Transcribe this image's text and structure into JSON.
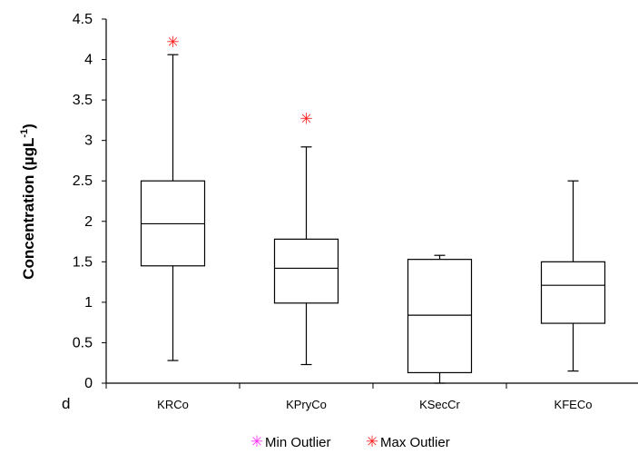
{
  "chart_data": {
    "type": "box",
    "categories": [
      "KRCo",
      "KPryCo",
      "KSecCr",
      "KFECo"
    ],
    "ylabel": "Concentration (µgL",
    "ylabel_sup": "-1",
    "ylabel_close": ")",
    "ylim": [
      0,
      4.5
    ],
    "yticks": [
      0,
      0.5,
      1,
      1.5,
      2,
      2.5,
      3,
      3.5,
      4,
      4.5
    ],
    "panel_label": "d",
    "boxes": [
      {
        "category": "KRCo",
        "min": 0.28,
        "q1": 1.45,
        "median": 1.97,
        "q3": 2.5,
        "max": 4.06,
        "max_outlier": 4.22
      },
      {
        "category": "KPryCo",
        "min": 0.23,
        "q1": 0.99,
        "median": 1.42,
        "q3": 1.78,
        "max": 2.92,
        "max_outlier": 3.27
      },
      {
        "category": "KSecCr",
        "min": 0.0,
        "q1": 0.13,
        "median": 0.84,
        "q3": 1.53,
        "max": 1.58
      },
      {
        "category": "KFECo",
        "min": 0.15,
        "q1": 0.74,
        "median": 1.21,
        "q3": 1.5,
        "max": 2.5
      }
    ],
    "legend": [
      {
        "label": "Min Outlier",
        "color": "#ff33ff"
      },
      {
        "label": "Max Outlier",
        "color": "#ff2222"
      }
    ],
    "legend_position": "bottom",
    "outlier_symbol": "✳",
    "grid": false
  }
}
